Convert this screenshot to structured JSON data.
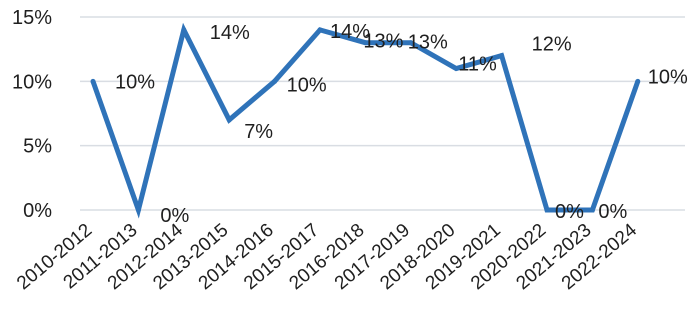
{
  "chart_data": {
    "type": "line",
    "categories": [
      "2010-2012",
      "2011-2013",
      "2012-2014",
      "2013-2015",
      "2014-2016",
      "2015-2017",
      "2016-2018",
      "2017-2019",
      "2018-2020",
      "2019-2021",
      "2020-2022",
      "2021-2023",
      "2022-2024"
    ],
    "series": [
      {
        "values": [
          10,
          0,
          14,
          7,
          10,
          14,
          13,
          13,
          11,
          12,
          0,
          0,
          10
        ]
      }
    ],
    "data_labels": [
      "10%",
      "0%",
      "14%",
      "7%",
      "10%",
      "14%",
      "13%",
      "13%",
      "11%",
      "12%",
      "0%",
      "0%",
      "10%"
    ],
    "yticks": [
      {
        "value": 0,
        "label": "0%"
      },
      {
        "value": 5,
        "label": "5%"
      },
      {
        "value": 10,
        "label": "10%"
      },
      {
        "value": 15,
        "label": "15%"
      }
    ],
    "ylim": [
      0,
      15
    ],
    "grid": true,
    "title": "",
    "xlabel": "",
    "ylabel": "",
    "colors": {
      "line": "#2f73b9",
      "grid": "#d9dde3",
      "text": "#1f1f1f"
    }
  }
}
